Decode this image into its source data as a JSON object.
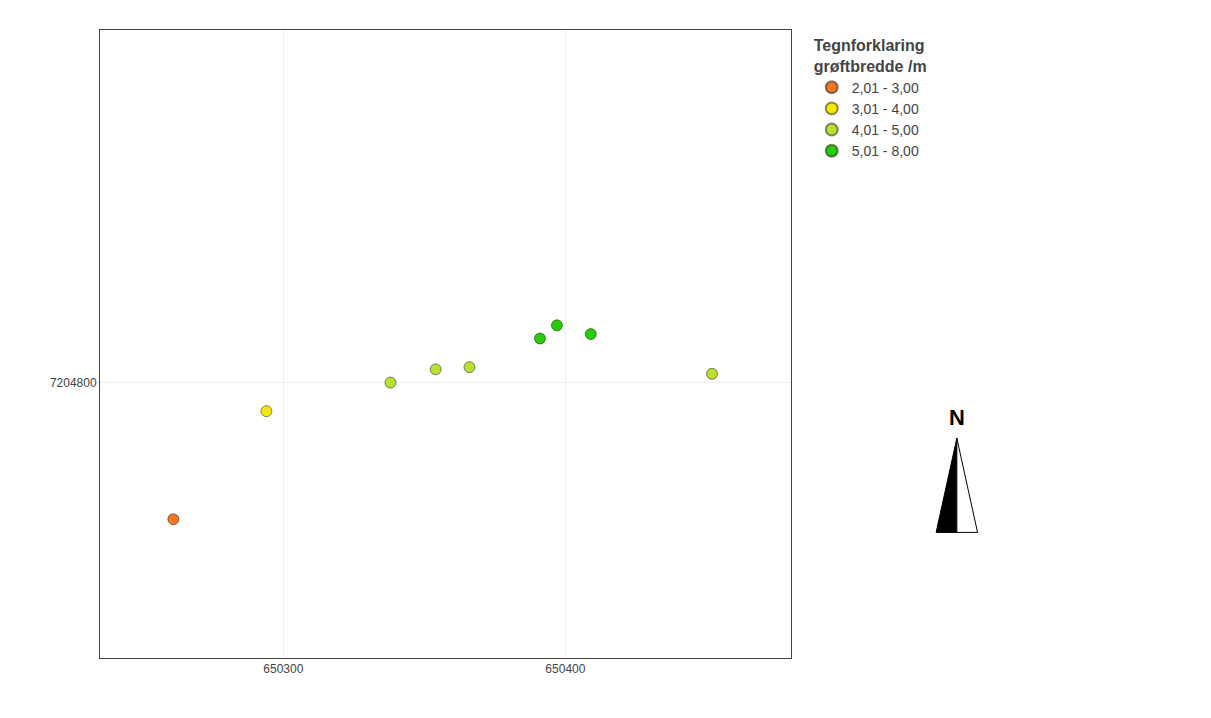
{
  "chart_data": {
    "type": "scatter",
    "title": "Tegnforklaring\ngrøftbredde /m",
    "series": [
      {
        "name": "2,01 - 3,00",
        "color": "#f07822",
        "x": [
          650261
        ],
        "values": [
          7204738
        ]
      },
      {
        "name": "3,01 - 4,00",
        "color": "#f5e800",
        "x": [
          650294
        ],
        "values": [
          7204787
        ]
      },
      {
        "name": "4,01 - 5,00",
        "color": "#b8e030",
        "x": [
          650338,
          650354,
          650366,
          650452
        ],
        "values": [
          7204800,
          7204806,
          7204807,
          7204804
        ]
      },
      {
        "name": "5,01 - 8,00",
        "color": "#28cc00",
        "x": [
          650391,
          650397,
          650409
        ],
        "values": [
          7204820,
          7204826,
          7204822
        ]
      }
    ],
    "xlim": [
      650235,
      650480
    ],
    "xticks": [
      650300,
      650400
    ],
    "ylim": [
      7204675,
      7204960
    ],
    "yticks": [
      7204800
    ],
    "grid": true,
    "legend": "right",
    "marker": "circle",
    "annotations": [
      {
        "text": "N"
      }
    ]
  }
}
